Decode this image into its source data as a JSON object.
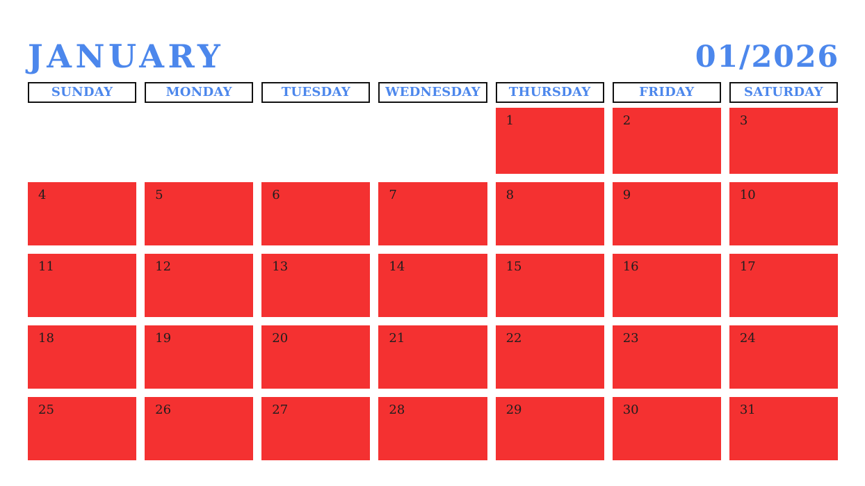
{
  "header": {
    "title": "JANUARY",
    "period": "01/2026"
  },
  "weekday_labels": [
    "SUNDAY",
    "MONDAY",
    "TUESDAY",
    "WEDNESDAY",
    "THURSDAY",
    "FRIDAY",
    "SATURDAY"
  ],
  "weeks": [
    [
      "",
      "",
      "",
      "",
      "1",
      "2",
      "3"
    ],
    [
      "4",
      "5",
      "6",
      "7",
      "8",
      "9",
      "10"
    ],
    [
      "11",
      "12",
      "13",
      "14",
      "15",
      "16",
      "17"
    ],
    [
      "18",
      "19",
      "20",
      "21",
      "22",
      "23",
      "24"
    ],
    [
      "25",
      "26",
      "27",
      "28",
      "29",
      "30",
      "31"
    ]
  ],
  "colors": {
    "accent_blue": "#4c87ec",
    "cell_red": "#f43131",
    "header_box_border": "#111111",
    "day_number": "#1e1e1e",
    "background": "#ffffff"
  }
}
